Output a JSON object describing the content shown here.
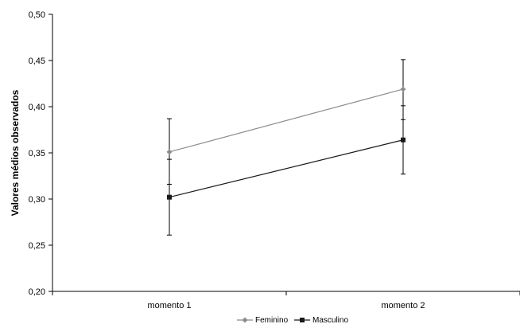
{
  "chart_data": {
    "type": "line",
    "ylabel": "Valores médios observados",
    "xlabel": "",
    "categories": [
      "momento 1",
      "momento 2"
    ],
    "ylim": [
      0.2,
      0.5
    ],
    "yticks": [
      "0,20",
      "0,25",
      "0,30",
      "0,35",
      "0,40",
      "0,45",
      "0,50"
    ],
    "grid": false,
    "legend_position": "bottom",
    "series": [
      {
        "name": "Feminino",
        "values": [
          0.351,
          0.419
        ],
        "error_low": [
          0.316,
          0.386
        ],
        "error_high": [
          0.387,
          0.451
        ],
        "marker": "diamond",
        "color": "#8c8c8c"
      },
      {
        "name": "Masculino",
        "values": [
          0.302,
          0.364
        ],
        "error_low": [
          0.261,
          0.327
        ],
        "error_high": [
          0.343,
          0.401
        ],
        "marker": "square",
        "color": "#1a1a1a"
      }
    ]
  }
}
